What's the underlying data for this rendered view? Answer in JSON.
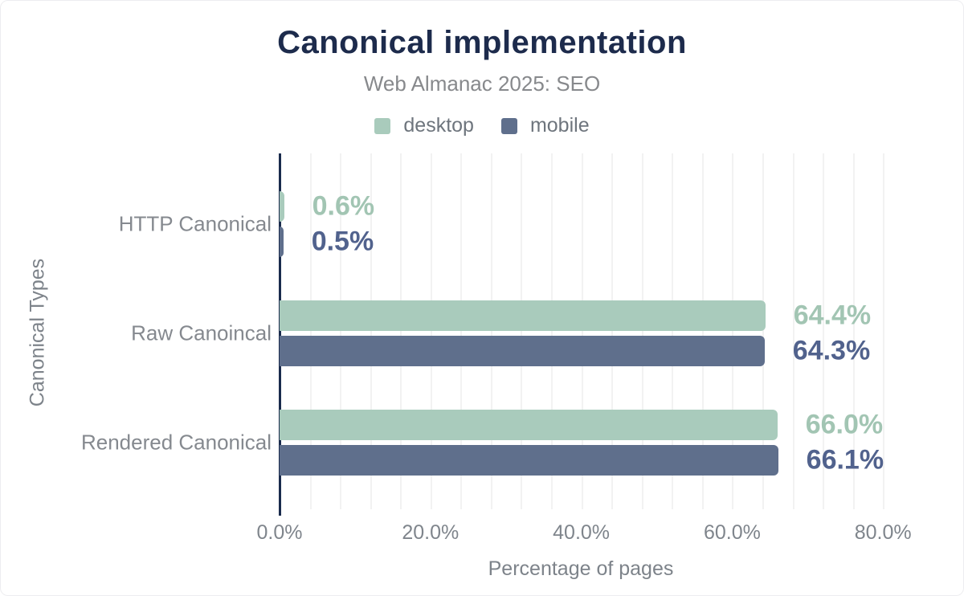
{
  "chart_data": {
    "type": "bar",
    "orientation": "horizontal",
    "title": "Canonical implementation",
    "subtitle": "Web Almanac 2025: SEO",
    "xlabel": "Percentage of pages",
    "ylabel": "Canonical Types",
    "categories": [
      "HTTP Canonical",
      "Raw Canoincal",
      "Rendered Canonical"
    ],
    "series": [
      {
        "name": "desktop",
        "color": "#a9cbbc",
        "label_color": "#a2c5b3",
        "values": [
          0.6,
          64.4,
          66.0
        ],
        "value_labels": [
          "0.6%",
          "64.4%",
          "66.0%"
        ]
      },
      {
        "name": "mobile",
        "color": "#5f6f8c",
        "label_color": "#51628d",
        "values": [
          0.5,
          64.3,
          66.1
        ],
        "value_labels": [
          "0.5%",
          "64.3%",
          "66.1%"
        ]
      }
    ],
    "xlim": [
      0,
      80
    ],
    "x_ticks": [
      {
        "value": 0,
        "label": "0.0%"
      },
      {
        "value": 20,
        "label": "20.0%"
      },
      {
        "value": 40,
        "label": "40.0%"
      },
      {
        "value": 60,
        "label": "60.0%"
      },
      {
        "value": 80,
        "label": "80.0%"
      }
    ],
    "grid": {
      "show": true,
      "step_pct": 4,
      "max_pct": 80,
      "color": "#f2f2f2"
    },
    "legend_position": "top",
    "axis_color": "#1a2b4d",
    "text_colors": {
      "title": "#1d2b4c",
      "subtitle": "#87898c",
      "legend": "#6e757d",
      "category_labels": "#85898f",
      "tick_labels": "#7f858c",
      "axis_titles": "#7d838a"
    }
  }
}
